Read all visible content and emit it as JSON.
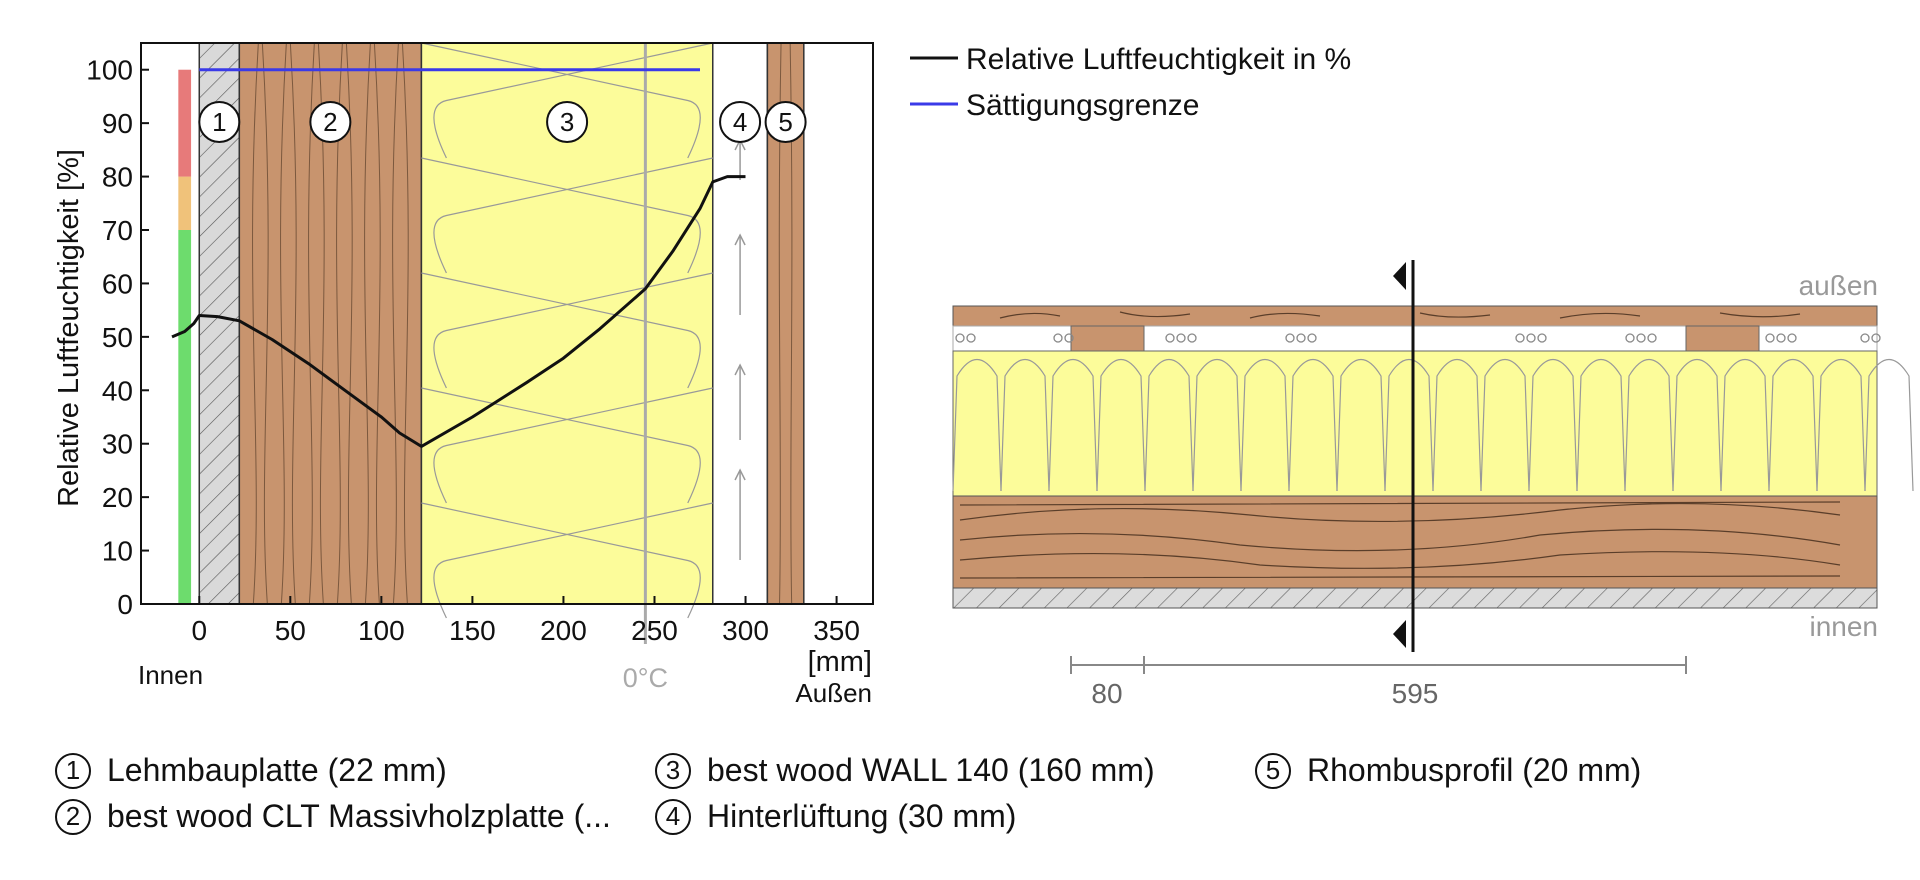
{
  "chart_data": [
    {
      "type": "line",
      "ylabel": "Relative Luftfeuchtigkeit [%]",
      "xlabel": "[mm]",
      "x_ticks": [
        0,
        50,
        100,
        150,
        200,
        250,
        300,
        350
      ],
      "y_ticks": [
        0,
        10,
        20,
        30,
        40,
        50,
        60,
        70,
        80,
        90,
        100
      ],
      "xlim": [
        -32,
        370
      ],
      "ylim": [
        0,
        105
      ],
      "inside_label": "Innen",
      "outside_label": "Außen",
      "zero_deg_label": "0°C",
      "zero_deg_x": 245,
      "grid": false,
      "legend_position": "top-right",
      "layers": [
        {
          "id": "1",
          "x_from": 0,
          "x_to": 22,
          "material": "clay-board",
          "color": "#d9d9d9"
        },
        {
          "id": "2",
          "x_from": 22,
          "x_to": 122,
          "material": "wood",
          "color": "#c8946e"
        },
        {
          "id": "3",
          "x_from": 122,
          "x_to": 282,
          "material": "insulation",
          "color": "#fcfc9a"
        },
        {
          "id": "4",
          "x_from": 282,
          "x_to": 312,
          "material": "ventilation",
          "color": "#ffffff"
        },
        {
          "id": "5",
          "x_from": 312,
          "x_to": 332,
          "material": "wood",
          "color": "#c8946e"
        }
      ],
      "humidity_bands": [
        {
          "from": 0,
          "to": 70,
          "color": "#6ddc6d"
        },
        {
          "from": 70,
          "to": 80,
          "color": "#f0c27a"
        },
        {
          "from": 80,
          "to": 100,
          "color": "#e77a7a"
        }
      ],
      "series": [
        {
          "name": "Relative Luftfeuchtigkeit in %",
          "color": "#111111",
          "x": [
            -15,
            -8,
            -3,
            0,
            10,
            22,
            40,
            60,
            80,
            100,
            110,
            122,
            150,
            180,
            200,
            220,
            245,
            260,
            275,
            282,
            290,
            300
          ],
          "y": [
            50,
            51,
            52.5,
            54,
            53.8,
            53,
            49.5,
            45,
            40,
            35,
            32,
            29.5,
            35,
            41.5,
            46,
            51.5,
            59,
            66,
            74,
            79,
            80,
            80
          ]
        },
        {
          "name": "Sättigungsgrenze",
          "color": "#3a3ae8",
          "x": [
            0,
            275
          ],
          "y": [
            100,
            100
          ]
        }
      ]
    }
  ],
  "section": {
    "outside_label": "außen",
    "inside_label": "innen",
    "dim_left": "80",
    "dim_right": "595"
  },
  "legend": [
    {
      "num": "1",
      "text": "Lehmbauplatte (22 mm)"
    },
    {
      "num": "2",
      "text": "best wood CLT Massivholzplatte (..."
    },
    {
      "num": "3",
      "text": "best wood WALL 140 (160 mm)"
    },
    {
      "num": "4",
      "text": "Hinterlüftung (30 mm)"
    },
    {
      "num": "5",
      "text": "Rhombusprofil (20 mm)"
    }
  ],
  "colors": {
    "wood": "#c8946e",
    "insulation": "#fcfc9a",
    "gray_text": "#999999"
  }
}
